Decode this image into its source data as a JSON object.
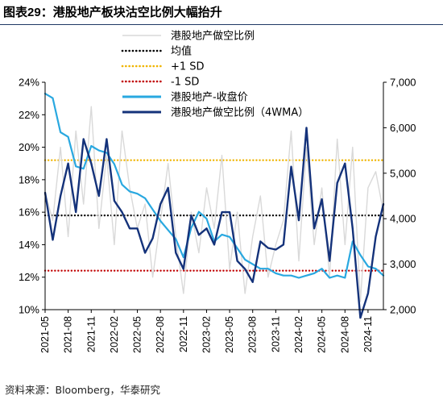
{
  "figure": {
    "label": "图表",
    "number": "29",
    "separator": "：",
    "title": "港股地产板块沽空比例大幅抬升",
    "source": "资料来源：Bloomberg，华泰研究"
  },
  "chart_data": {
    "type": "line",
    "grid": false,
    "legend_position": "top-right",
    "left_axis": {
      "ylim": [
        0.1,
        0.24
      ],
      "ticks": [
        "10%",
        "12%",
        "14%",
        "16%",
        "18%",
        "20%",
        "22%",
        "24%"
      ]
    },
    "right_axis": {
      "ylim": [
        2000,
        7000
      ],
      "ticks": [
        "2,000",
        "3,000",
        "4,000",
        "5,000",
        "6,000",
        "7,000"
      ]
    },
    "x_axis": {
      "range": [
        "2021-05",
        "2025-01"
      ],
      "ticks": [
        "2021-05",
        "2021-08",
        "2021-11",
        "2022-02",
        "2022-05",
        "2022-08",
        "2022-11",
        "2023-02",
        "2023-05",
        "2023-08",
        "2023-11",
        "2024-02",
        "2024-05",
        "2024-08",
        "2024-11"
      ]
    },
    "reference_lines": [
      {
        "name": "均值",
        "axis": "left",
        "value": 0.158,
        "color": "#000000"
      },
      {
        "name": "+1 SD",
        "axis": "left",
        "value": 0.192,
        "color": "#f0b400"
      },
      {
        "name": "-1 SD",
        "axis": "left",
        "value": 0.124,
        "color": "#c00000"
      }
    ],
    "series": [
      {
        "name": "港股地产做空比例",
        "axis": "left",
        "color": "#d9d9d9",
        "x": [
          "2021-05",
          "2021-06",
          "2021-07",
          "2021-08",
          "2021-09",
          "2021-10",
          "2021-11",
          "2021-12",
          "2022-01",
          "2022-02",
          "2022-03",
          "2022-04",
          "2022-05",
          "2022-06",
          "2022-07",
          "2022-08",
          "2022-09",
          "2022-10",
          "2022-11",
          "2022-12",
          "2023-01",
          "2023-02",
          "2023-03",
          "2023-04",
          "2023-05",
          "2023-06",
          "2023-07",
          "2023-08",
          "2023-09",
          "2023-10",
          "2023-11",
          "2023-12",
          "2024-01",
          "2024-02",
          "2024-03",
          "2024-04",
          "2024-05",
          "2024-06",
          "2024-07",
          "2024-08",
          "2024-09",
          "2024-10",
          "2024-11",
          "2024-12",
          "2025-01"
        ],
        "values": [
          0.172,
          0.155,
          0.2,
          0.145,
          0.21,
          0.165,
          0.225,
          0.15,
          0.195,
          0.14,
          0.21,
          0.175,
          0.15,
          0.165,
          0.12,
          0.155,
          0.19,
          0.145,
          0.11,
          0.16,
          0.135,
          0.175,
          0.15,
          0.195,
          0.125,
          0.16,
          0.11,
          0.145,
          0.17,
          0.12,
          0.14,
          0.155,
          0.21,
          0.13,
          0.2,
          0.14,
          0.175,
          0.12,
          0.205,
          0.14,
          0.2,
          0.105,
          0.175,
          0.185,
          0.16
        ]
      },
      {
        "name": "港股地产-收盘价",
        "axis": "right",
        "color": "#29a8e0",
        "x": [
          "2021-05",
          "2021-06",
          "2021-07",
          "2021-08",
          "2021-09",
          "2021-10",
          "2021-11",
          "2021-12",
          "2022-01",
          "2022-02",
          "2022-03",
          "2022-04",
          "2022-05",
          "2022-06",
          "2022-07",
          "2022-08",
          "2022-09",
          "2022-10",
          "2022-11",
          "2022-12",
          "2023-01",
          "2023-02",
          "2023-03",
          "2023-04",
          "2023-05",
          "2023-06",
          "2023-07",
          "2023-08",
          "2023-09",
          "2023-10",
          "2023-11",
          "2023-12",
          "2024-01",
          "2024-02",
          "2024-03",
          "2024-04",
          "2024-05",
          "2024-06",
          "2024-07",
          "2024-08",
          "2024-09",
          "2024-10",
          "2024-11",
          "2024-12",
          "2025-01"
        ],
        "values": [
          6750,
          6650,
          5900,
          5800,
          5150,
          5100,
          5600,
          5500,
          5450,
          5200,
          4750,
          4600,
          4550,
          4450,
          4200,
          3950,
          3750,
          3550,
          3150,
          3800,
          4150,
          4000,
          3500,
          3650,
          3600,
          3350,
          3100,
          3000,
          2900,
          2900,
          2800,
          2750,
          2750,
          2700,
          2750,
          2800,
          2900,
          2700,
          2750,
          2700,
          3500,
          3200,
          2950,
          2900,
          2750
        ]
      },
      {
        "name": "港股地产做空比例（4WMA）",
        "axis": "left",
        "color": "#14327a",
        "x": [
          "2021-05",
          "2021-06",
          "2021-07",
          "2021-08",
          "2021-09",
          "2021-10",
          "2021-11",
          "2021-12",
          "2022-01",
          "2022-02",
          "2022-03",
          "2022-04",
          "2022-05",
          "2022-06",
          "2022-07",
          "2022-08",
          "2022-09",
          "2022-10",
          "2022-11",
          "2022-12",
          "2023-01",
          "2023-02",
          "2023-03",
          "2023-04",
          "2023-05",
          "2023-06",
          "2023-07",
          "2023-08",
          "2023-09",
          "2023-10",
          "2023-11",
          "2023-12",
          "2024-01",
          "2024-02",
          "2024-03",
          "2024-04",
          "2024-05",
          "2024-06",
          "2024-07",
          "2024-08",
          "2024-09",
          "2024-10",
          "2024-11",
          "2024-12",
          "2025-01"
        ],
        "values": [
          0.172,
          0.143,
          0.17,
          0.19,
          0.16,
          0.205,
          0.19,
          0.17,
          0.205,
          0.167,
          0.16,
          0.15,
          0.15,
          0.135,
          0.144,
          0.165,
          0.175,
          0.135,
          0.125,
          0.158,
          0.146,
          0.15,
          0.14,
          0.16,
          0.16,
          0.13,
          0.125,
          0.117,
          0.142,
          0.138,
          0.137,
          0.14,
          0.188,
          0.155,
          0.212,
          0.15,
          0.168,
          0.13,
          0.178,
          0.19,
          0.15,
          0.095,
          0.11,
          0.145,
          0.165
        ]
      }
    ]
  }
}
